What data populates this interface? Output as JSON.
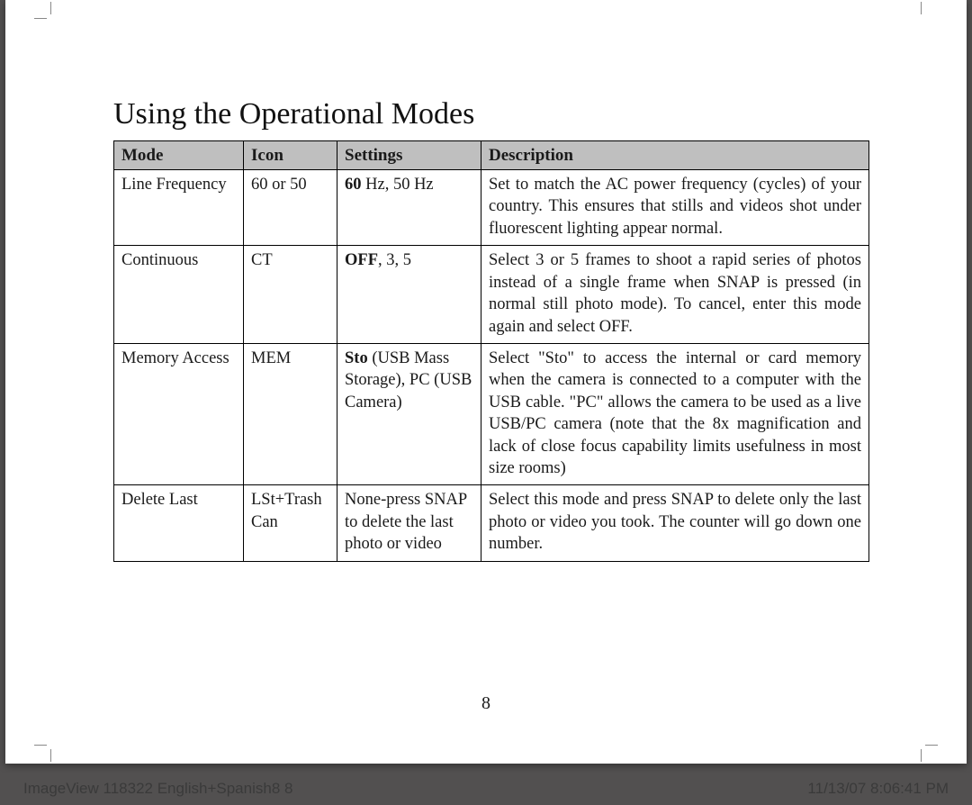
{
  "title": "Using the Operational Modes",
  "columns": {
    "mode": "Mode",
    "icon": "Icon",
    "settings": "Settings",
    "description": "Description"
  },
  "rows": [
    {
      "mode": "Line Frequency",
      "icon": "60 or 50",
      "settings_bold": "60",
      "settings_rest": " Hz, 50 Hz",
      "description": "Set to match the AC power frequency (cycles) of your country. This ensures that stills and videos shot under fluorescent lighting appear normal."
    },
    {
      "mode": "Continuous",
      "icon": "CT",
      "settings_bold": "OFF",
      "settings_rest": ", 3, 5",
      "description": "Select 3 or 5 frames to shoot a rapid series of photos instead of a single frame when SNAP is pressed (in normal still photo mode). To cancel, enter this mode again and select OFF."
    },
    {
      "mode": "Memory Access",
      "icon": "MEM",
      "settings_bold": "Sto",
      "settings_rest": " (USB Mass Storage), PC (USB Camera)",
      "description": "Select \"Sto\" to access the internal or card memory when the camera is connected to a computer with the USB cable. \"PC\" allows the camera to be used as a live USB/PC camera (note that the 8x magnification and lack of close focus capability limits usefulness in most size rooms)"
    },
    {
      "mode": "Delete Last",
      "icon": "LSt+Trash Can",
      "settings_bold": "",
      "settings_rest": "None-press SNAP to delete the last photo or video",
      "description": "Select this mode and press SNAP to delete only the last photo or video you took. The counter will go down one number."
    }
  ],
  "page_number": "8",
  "footer_left": "ImageView 118322 English+Spanish8   8",
  "footer_right": "11/13/07   8:06:41 PM"
}
